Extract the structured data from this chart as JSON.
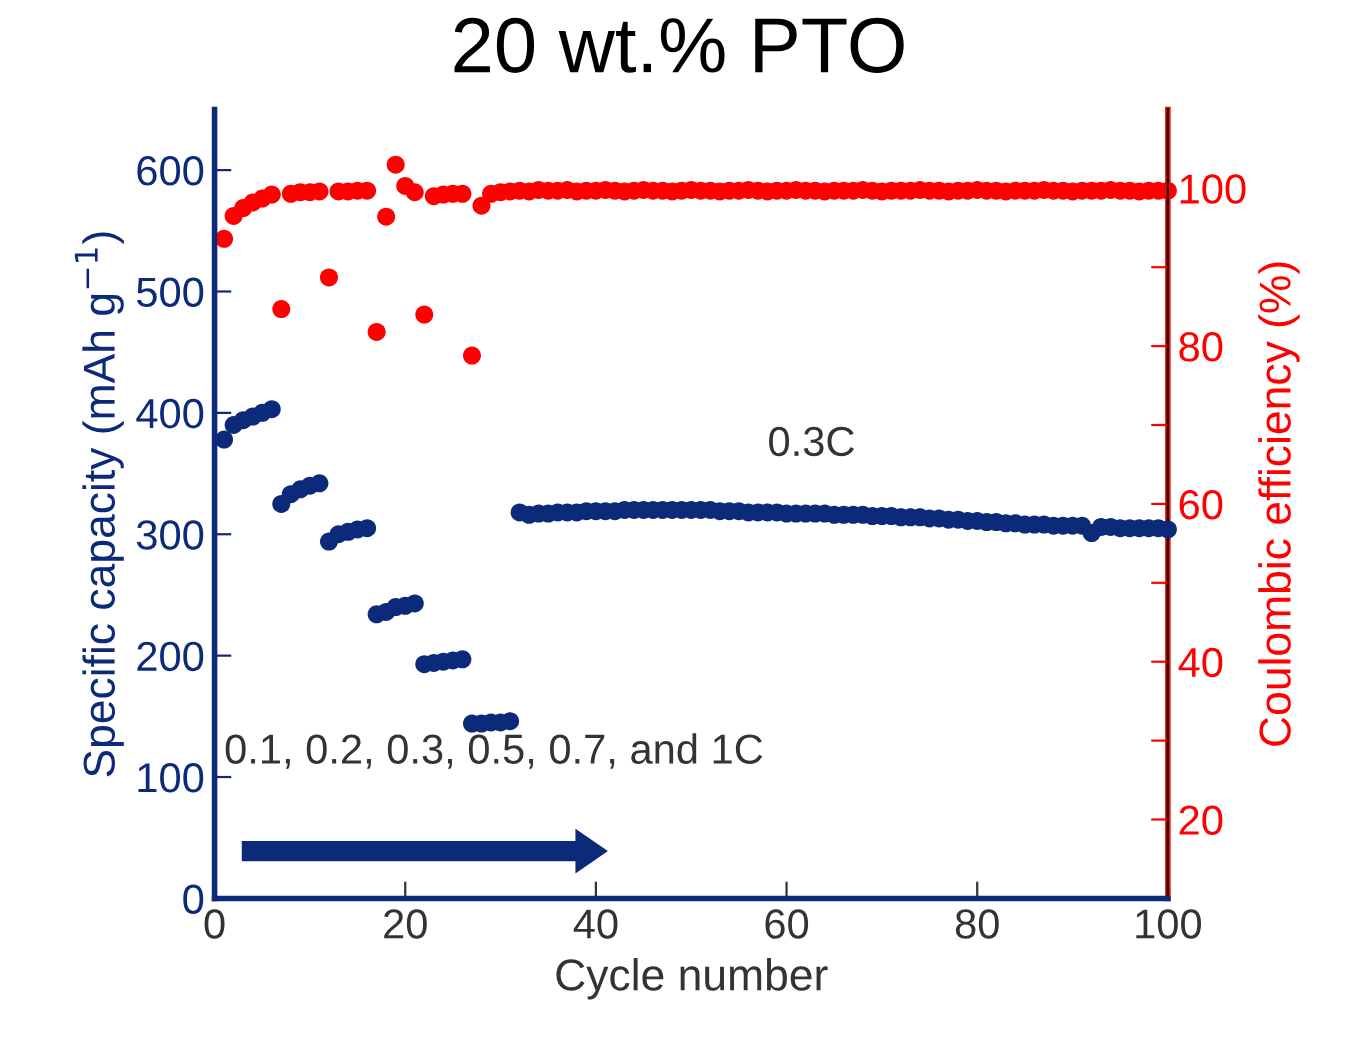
{
  "chart_data": {
    "type": "scatter",
    "title": "20 wt.% PTO",
    "xlabel": "Cycle number",
    "ylabel": "Specific capacity (mAh g$^{−1}$)",
    "y2label": "Coulombic efficiency (%)",
    "x": [
      1,
      2,
      3,
      4,
      5,
      6,
      7,
      8,
      9,
      10,
      11,
      12,
      13,
      14,
      15,
      16,
      17,
      18,
      19,
      20,
      21,
      22,
      23,
      24,
      25,
      26,
      27,
      28,
      29,
      30,
      31,
      32,
      33,
      34,
      35,
      36,
      37,
      38,
      39,
      40,
      41,
      42,
      43,
      44,
      45,
      46,
      47,
      48,
      49,
      50,
      51,
      52,
      53,
      54,
      55,
      56,
      57,
      58,
      59,
      60,
      61,
      62,
      63,
      64,
      65,
      66,
      67,
      68,
      69,
      70,
      71,
      72,
      73,
      74,
      75,
      76,
      77,
      78,
      79,
      80,
      81,
      82,
      83,
      84,
      85,
      86,
      87,
      88,
      89,
      90,
      91,
      92,
      93,
      94,
      95,
      96,
      97,
      98,
      99,
      100
    ],
    "series": [
      {
        "color": "#0b2a7a",
        "values": [
          378,
          390,
          394,
          397,
          400,
          403,
          325,
          333,
          337,
          340,
          342,
          294,
          300,
          302,
          304,
          305,
          234,
          236,
          240,
          241,
          243,
          193,
          194,
          195,
          196,
          197,
          144,
          144,
          145,
          145,
          146,
          318,
          316,
          317,
          317,
          318,
          318,
          318,
          319,
          319,
          319,
          319,
          320,
          320,
          320,
          320,
          320,
          320,
          320,
          320,
          320,
          320,
          319,
          319,
          319,
          318,
          318,
          318,
          318,
          317,
          317,
          317,
          317,
          317,
          316,
          316,
          316,
          316,
          315,
          315,
          315,
          314,
          314,
          314,
          313,
          313,
          312,
          312,
          311,
          311,
          310,
          310,
          309,
          309,
          308,
          308,
          308,
          307,
          307,
          307,
          307,
          301,
          306,
          306,
          305,
          305,
          305,
          305,
          305,
          304
        ]
      },
      {
        "color": "#ff0000",
        "axis": "y2",
        "values": [
          93.6,
          96.5,
          97.5,
          98.2,
          98.7,
          99.2,
          84.7,
          99.3,
          99.5,
          99.5,
          99.6,
          88.7,
          99.6,
          99.6,
          99.7,
          99.7,
          81.8,
          96.4,
          103,
          100.3,
          99.5,
          84,
          99,
          99.2,
          99.3,
          99.3,
          78.8,
          97.8,
          99.3,
          99.5,
          99.6,
          99.7,
          99.6,
          99.8,
          99.7,
          99.7,
          99.8,
          99.6,
          99.7,
          99.7,
          99.8,
          99.7,
          99.6,
          99.7,
          99.8,
          99.7,
          99.7,
          99.6,
          99.7,
          99.8,
          99.7,
          99.7,
          99.6,
          99.7,
          99.7,
          99.8,
          99.7,
          99.6,
          99.7,
          99.7,
          99.8,
          99.7,
          99.7,
          99.6,
          99.7,
          99.7,
          99.7,
          99.8,
          99.7,
          99.6,
          99.7,
          99.7,
          99.7,
          99.8,
          99.7,
          99.7,
          99.6,
          99.7,
          99.7,
          99.8,
          99.7,
          99.7,
          99.6,
          99.7,
          99.7,
          99.7,
          99.8,
          99.7,
          99.7,
          99.6,
          99.7,
          99.7,
          99.7,
          99.8,
          99.7,
          99.7,
          99.6,
          99.7,
          99.7,
          99.7
        ]
      }
    ],
    "xlim": [
      0,
      100
    ],
    "xticks": [
      0,
      20,
      40,
      60,
      80,
      100
    ],
    "ylim": [
      0,
      650
    ],
    "yticks": [
      0,
      100,
      200,
      300,
      400,
      500,
      600
    ],
    "y2lim": [
      10,
      110
    ],
    "y2ticks": [
      {
        "value": 10,
        "label": null
      },
      20,
      {
        "value": 30,
        "label": null
      },
      40,
      {
        "value": 50,
        "label": null
      },
      60,
      {
        "value": 70,
        "label": null
      },
      80,
      {
        "value": 90,
        "label": null
      },
      100
    ],
    "marker": "circle",
    "grid": false,
    "legend": false,
    "annotations": [
      "0.3C",
      "0.1, 0.2, 0.3, 0.5, 0.7, and 1C"
    ]
  }
}
